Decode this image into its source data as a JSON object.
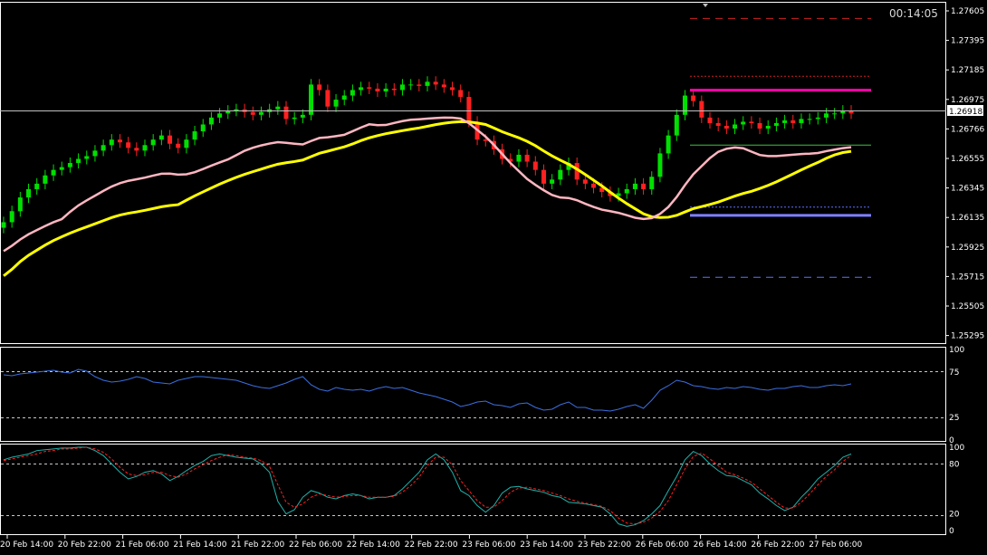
{
  "window": {
    "timer": "00:14:05",
    "current_price": "1.26918"
  },
  "price_scale": [
    "1.27605",
    "1.27395",
    "1.27185",
    "1.26975",
    "1.26766",
    "1.26555",
    "1.26345",
    "1.26135",
    "1.25925",
    "1.25715",
    "1.25505",
    "1.25295"
  ],
  "rsi_scale": [
    "100",
    "75",
    "25",
    "0"
  ],
  "stoch_scale": [
    "100",
    "80",
    "20",
    "0"
  ],
  "time_labels": [
    "20 Feb 14:00",
    "20 Feb 22:00",
    "21 Feb 06:00",
    "21 Feb 14:00",
    "21 Feb 22:00",
    "22 Feb 06:00",
    "22 Feb 14:00",
    "22 Feb 22:00",
    "23 Feb 06:00",
    "23 Feb 14:00",
    "23 Feb 22:00",
    "26 Feb 06:00",
    "26 Feb 14:00",
    "26 Feb 22:00",
    "27 Feb 06:00"
  ],
  "colors": {
    "bull": "#00e000",
    "bear": "#ff2020",
    "ma_fast": "#ffb6c1",
    "ma_slow": "#ffff00",
    "level_magenta": "#ff00aa",
    "level_violet": "#8080ff",
    "rsi": "#3a6fe0",
    "stoch_main": "#20b2aa",
    "stoch_signal": "#ff2020",
    "axis": "#ffffff"
  },
  "chart_data": {
    "type": "candlestick",
    "price_range": [
      1.25255,
      1.27655
    ],
    "close_series": [
      1.2612,
      1.262,
      1.263,
      1.2636,
      1.264,
      1.2646,
      1.265,
      1.2652,
      1.2655,
      1.2658,
      1.266,
      1.2664,
      1.2668,
      1.2672,
      1.267,
      1.2666,
      1.2664,
      1.2668,
      1.2672,
      1.2675,
      1.2669,
      1.2666,
      1.2672,
      1.2678,
      1.2683,
      1.2688,
      1.2691,
      1.2693,
      1.2694,
      1.2692,
      1.269,
      1.2692,
      1.2694,
      1.2696,
      1.2687,
      1.2688,
      1.269,
      1.2712,
      1.2708,
      1.2696,
      1.2701,
      1.2704,
      1.2708,
      1.271,
      1.2709,
      1.2707,
      1.2709,
      1.2708,
      1.2712,
      1.2712,
      1.2711,
      1.2714,
      1.2712,
      1.271,
      1.2708,
      1.2703,
      1.2685,
      1.2672,
      1.2671,
      1.2665,
      1.2658,
      1.2656,
      1.2661,
      1.2656,
      1.265,
      1.264,
      1.2643,
      1.265,
      1.2655,
      1.2643,
      1.264,
      1.2637,
      1.2634,
      1.2631,
      1.2633,
      1.2636,
      1.264,
      1.2636,
      1.2645,
      1.2662,
      1.2675,
      1.269,
      1.2704,
      1.27,
      1.2688,
      1.2684,
      1.2682,
      1.268,
      1.2683,
      1.2685,
      1.2684,
      1.268,
      1.2682,
      1.2684,
      1.2686,
      1.2684,
      1.2687,
      1.2687,
      1.2688,
      1.2691,
      1.2691,
      1.2693,
      1.2691
    ],
    "ma_fast_range": [
      1.2591,
      1.2688
    ],
    "ma_slow_range": [
      1.2573,
      1.2685
    ],
    "levels": {
      "magenta": 1.2708,
      "violet": 1.2617,
      "red_dash_top": 1.276,
      "red_dot": 1.2718,
      "blue_dot": 1.2623,
      "blue_dash": 1.2572,
      "green_line": 1.2668
    },
    "rsi": {
      "range": [
        0,
        100
      ],
      "levels": [
        75,
        25
      ],
      "values": [
        72,
        71,
        73,
        74,
        75,
        76,
        77,
        75,
        74,
        78,
        76,
        70,
        66,
        64,
        65,
        67,
        70,
        68,
        64,
        63,
        62,
        66,
        68,
        70,
        70,
        69,
        68,
        67,
        66,
        63,
        60,
        58,
        57,
        60,
        63,
        67,
        70,
        61,
        56,
        54,
        58,
        56,
        55,
        56,
        54,
        57,
        59,
        57,
        58,
        55,
        52,
        50,
        48,
        45,
        42,
        37,
        39,
        42,
        43,
        39,
        38,
        36,
        40,
        41,
        36,
        33,
        34,
        39,
        42,
        36,
        36,
        33,
        33,
        32,
        34,
        37,
        39,
        35,
        44,
        55,
        60,
        66,
        64,
        60,
        59,
        57,
        56,
        58,
        57,
        59,
        58,
        56,
        55,
        57,
        57,
        59,
        60,
        58,
        58,
        60,
        61,
        60,
        62
      ]
    },
    "stochastic": {
      "range": [
        0,
        100
      ],
      "levels": [
        80,
        20
      ],
      "main": [
        85,
        88,
        90,
        92,
        96,
        97,
        98,
        99,
        99,
        100,
        100,
        96,
        90,
        80,
        70,
        62,
        65,
        70,
        72,
        68,
        60,
        65,
        72,
        78,
        83,
        90,
        92,
        90,
        88,
        87,
        86,
        80,
        70,
        35,
        20,
        25,
        40,
        48,
        45,
        40,
        38,
        42,
        44,
        42,
        38,
        40,
        40,
        42,
        50,
        60,
        70,
        85,
        92,
        85,
        70,
        48,
        42,
        30,
        22,
        30,
        45,
        52,
        53,
        50,
        48,
        46,
        42,
        40,
        34,
        33,
        32,
        30,
        28,
        20,
        8,
        5,
        7,
        12,
        20,
        30,
        48,
        65,
        85,
        95,
        90,
        80,
        72,
        66,
        65,
        60,
        55,
        45,
        38,
        30,
        24,
        28,
        40,
        50,
        62,
        70,
        78,
        88,
        92
      ],
      "signal": [
        84,
        86,
        88,
        90,
        92,
        95,
        96,
        98,
        98,
        99,
        100,
        98,
        94,
        86,
        76,
        68,
        66,
        67,
        70,
        70,
        66,
        64,
        68,
        74,
        79,
        84,
        88,
        91,
        90,
        88,
        87,
        84,
        77,
        55,
        34,
        28,
        32,
        40,
        44,
        42,
        40,
        41,
        42,
        42,
        40,
        40,
        40,
        41,
        46,
        54,
        64,
        78,
        88,
        88,
        79,
        60,
        48,
        36,
        28,
        28,
        36,
        46,
        51,
        52,
        50,
        48,
        45,
        42,
        38,
        35,
        33,
        31,
        29,
        24,
        15,
        9,
        8,
        10,
        15,
        23,
        36,
        55,
        74,
        89,
        93,
        86,
        78,
        70,
        67,
        63,
        58,
        50,
        42,
        34,
        27,
        27,
        34,
        44,
        55,
        65,
        73,
        83,
        90
      ]
    }
  }
}
